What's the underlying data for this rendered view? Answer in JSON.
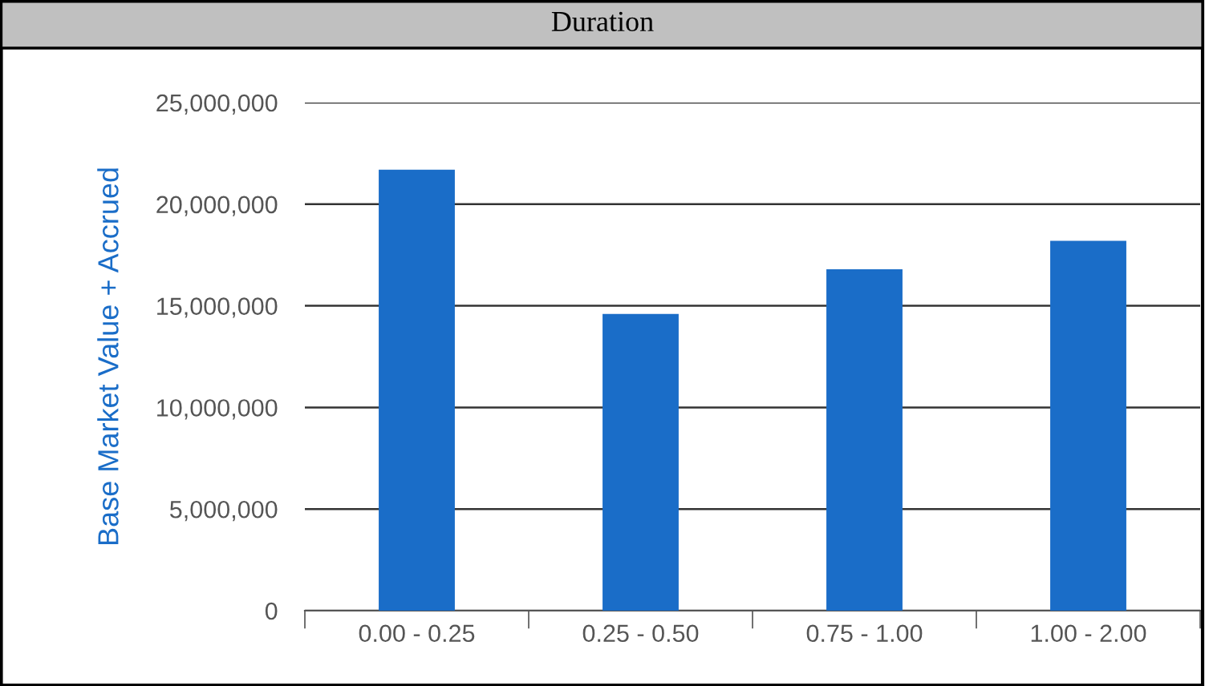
{
  "chart_data": {
    "type": "bar",
    "title": "Duration",
    "ylabel": "Base Market Value + Accrued",
    "categories": [
      "0.00 - 0.25",
      "0.25 - 0.50",
      "0.75 - 1.00",
      "1.00 - 2.00"
    ],
    "values": [
      21700000,
      14600000,
      16800000,
      18200000
    ],
    "color": "#1a6dc8",
    "ylim": [
      0,
      25000000
    ],
    "yticks": [
      {
        "value": 0,
        "label": "0"
      },
      {
        "value": 5000000,
        "label": "5,000,000"
      },
      {
        "value": 10000000,
        "label": "10,000,000"
      },
      {
        "value": 15000000,
        "label": "15,000,000"
      },
      {
        "value": 20000000,
        "label": "20,000,000"
      },
      {
        "value": 25000000,
        "label": "25,000,000"
      }
    ],
    "grid": "y",
    "legend": false
  }
}
